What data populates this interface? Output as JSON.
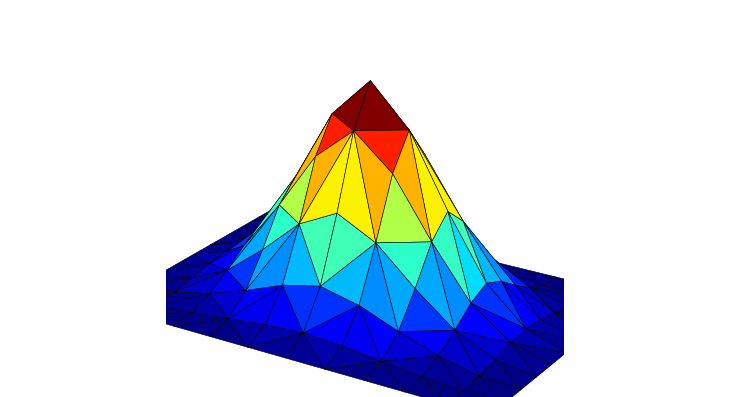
{
  "chart_data": {
    "type": "surface",
    "x": [
      -1,
      -0.8,
      -0.6,
      -0.4,
      -0.2,
      0,
      0.2,
      0.4,
      0.6,
      0.8,
      1
    ],
    "y": [
      -1,
      -0.8,
      -0.6,
      -0.4,
      -0.2,
      0,
      0.2,
      0.4,
      0.6,
      0.8,
      1
    ],
    "z": [
      [
        0,
        0,
        0,
        0,
        0,
        0,
        0,
        0,
        0,
        0,
        0
      ],
      [
        0,
        0,
        0.01,
        0.03,
        0.05,
        0.06,
        0.05,
        0.03,
        0.01,
        0,
        0
      ],
      [
        0,
        0.01,
        0.05,
        0.11,
        0.18,
        0.22,
        0.18,
        0.11,
        0.05,
        0.01,
        0
      ],
      [
        0,
        0.03,
        0.11,
        0.25,
        0.41,
        0.5,
        0.41,
        0.25,
        0.11,
        0.03,
        0
      ],
      [
        0,
        0.05,
        0.18,
        0.41,
        0.67,
        0.82,
        0.67,
        0.41,
        0.18,
        0.05,
        0
      ],
      [
        0,
        0.06,
        0.22,
        0.5,
        0.82,
        1,
        0.82,
        0.5,
        0.22,
        0.06,
        0
      ],
      [
        0,
        0.05,
        0.18,
        0.41,
        0.67,
        0.82,
        0.67,
        0.41,
        0.18,
        0.05,
        0
      ],
      [
        0,
        0.03,
        0.11,
        0.25,
        0.41,
        0.5,
        0.41,
        0.25,
        0.11,
        0.03,
        0
      ],
      [
        0,
        0.01,
        0.05,
        0.11,
        0.18,
        0.22,
        0.18,
        0.11,
        0.05,
        0.01,
        0
      ],
      [
        0,
        0,
        0.01,
        0.03,
        0.05,
        0.06,
        0.05,
        0.03,
        0.01,
        0,
        0
      ],
      [
        0,
        0,
        0,
        0,
        0,
        0,
        0,
        0,
        0,
        0,
        0
      ]
    ],
    "tick_labels": false
  }
}
